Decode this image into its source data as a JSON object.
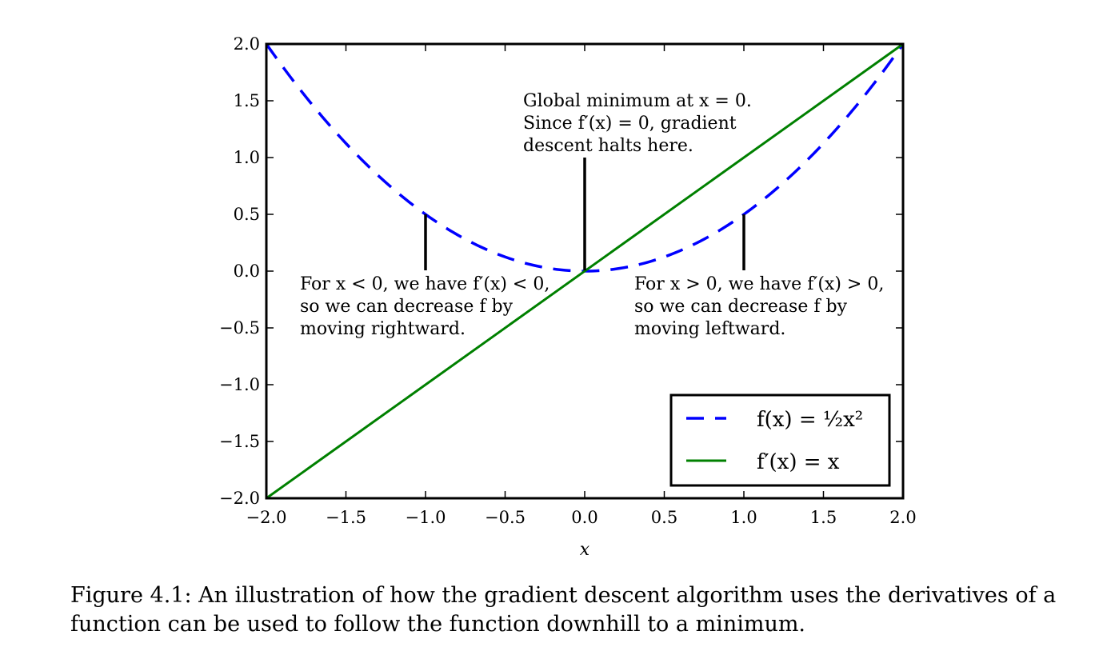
{
  "chart_data": {
    "type": "line",
    "xlabel": "x",
    "ylabel": "",
    "xlim": [
      -2.0,
      2.0
    ],
    "ylim": [
      -2.0,
      2.0
    ],
    "xticks": [
      -2.0,
      -1.5,
      -1.0,
      -0.5,
      0.0,
      0.5,
      1.0,
      1.5,
      2.0
    ],
    "yticks": [
      -2.0,
      -1.5,
      -1.0,
      -0.5,
      0.0,
      0.5,
      1.0,
      1.5,
      2.0
    ],
    "xtick_labels": [
      "−2.0",
      "−1.5",
      "−1.0",
      "−0.5",
      "0.0",
      "0.5",
      "1.0",
      "1.5",
      "2.0"
    ],
    "ytick_labels": [
      "−2.0",
      "−1.5",
      "−1.0",
      "−0.5",
      "0.0",
      "0.5",
      "1.0",
      "1.5",
      "2.0"
    ],
    "grid": false,
    "legend_position": "lower-right",
    "series": [
      {
        "name": "f(x) = ½x²",
        "function": "0.5*x^2",
        "style": "dashed",
        "color": "#0000ff",
        "x": [
          -2.0,
          -1.5,
          -1.0,
          -0.5,
          0.0,
          0.5,
          1.0,
          1.5,
          2.0
        ],
        "y": [
          2.0,
          1.125,
          0.5,
          0.125,
          0.0,
          0.125,
          0.5,
          1.125,
          2.0
        ]
      },
      {
        "name": "f′(x) = x",
        "function": "x",
        "style": "solid",
        "color": "#008000",
        "x": [
          -2.0,
          2.0
        ],
        "y": [
          -2.0,
          2.0
        ]
      }
    ],
    "annotations": [
      {
        "lines": [
          "Global minimum at x = 0.",
          "Since f′(x) = 0, gradient",
          "descent halts here."
        ],
        "point": [
          0.0,
          0.0
        ],
        "text_at": [
          -0.4,
          1.0
        ]
      },
      {
        "lines": [
          "For x < 0, we have f′(x) < 0,",
          "so we can decrease f by",
          "moving rightward."
        ],
        "point": [
          -1.0,
          0.5
        ],
        "text_at": [
          -1.0,
          0.0
        ]
      },
      {
        "lines": [
          "For x > 0, we have f′(x) > 0,",
          "so we can decrease f by",
          "moving leftward."
        ],
        "point": [
          1.0,
          0.5
        ],
        "text_at": [
          1.0,
          0.0
        ]
      }
    ]
  },
  "caption": "Figure 4.1: An illustration of how the gradient descent algorithm uses the derivatives of a function can be used to follow the function downhill to a minimum."
}
